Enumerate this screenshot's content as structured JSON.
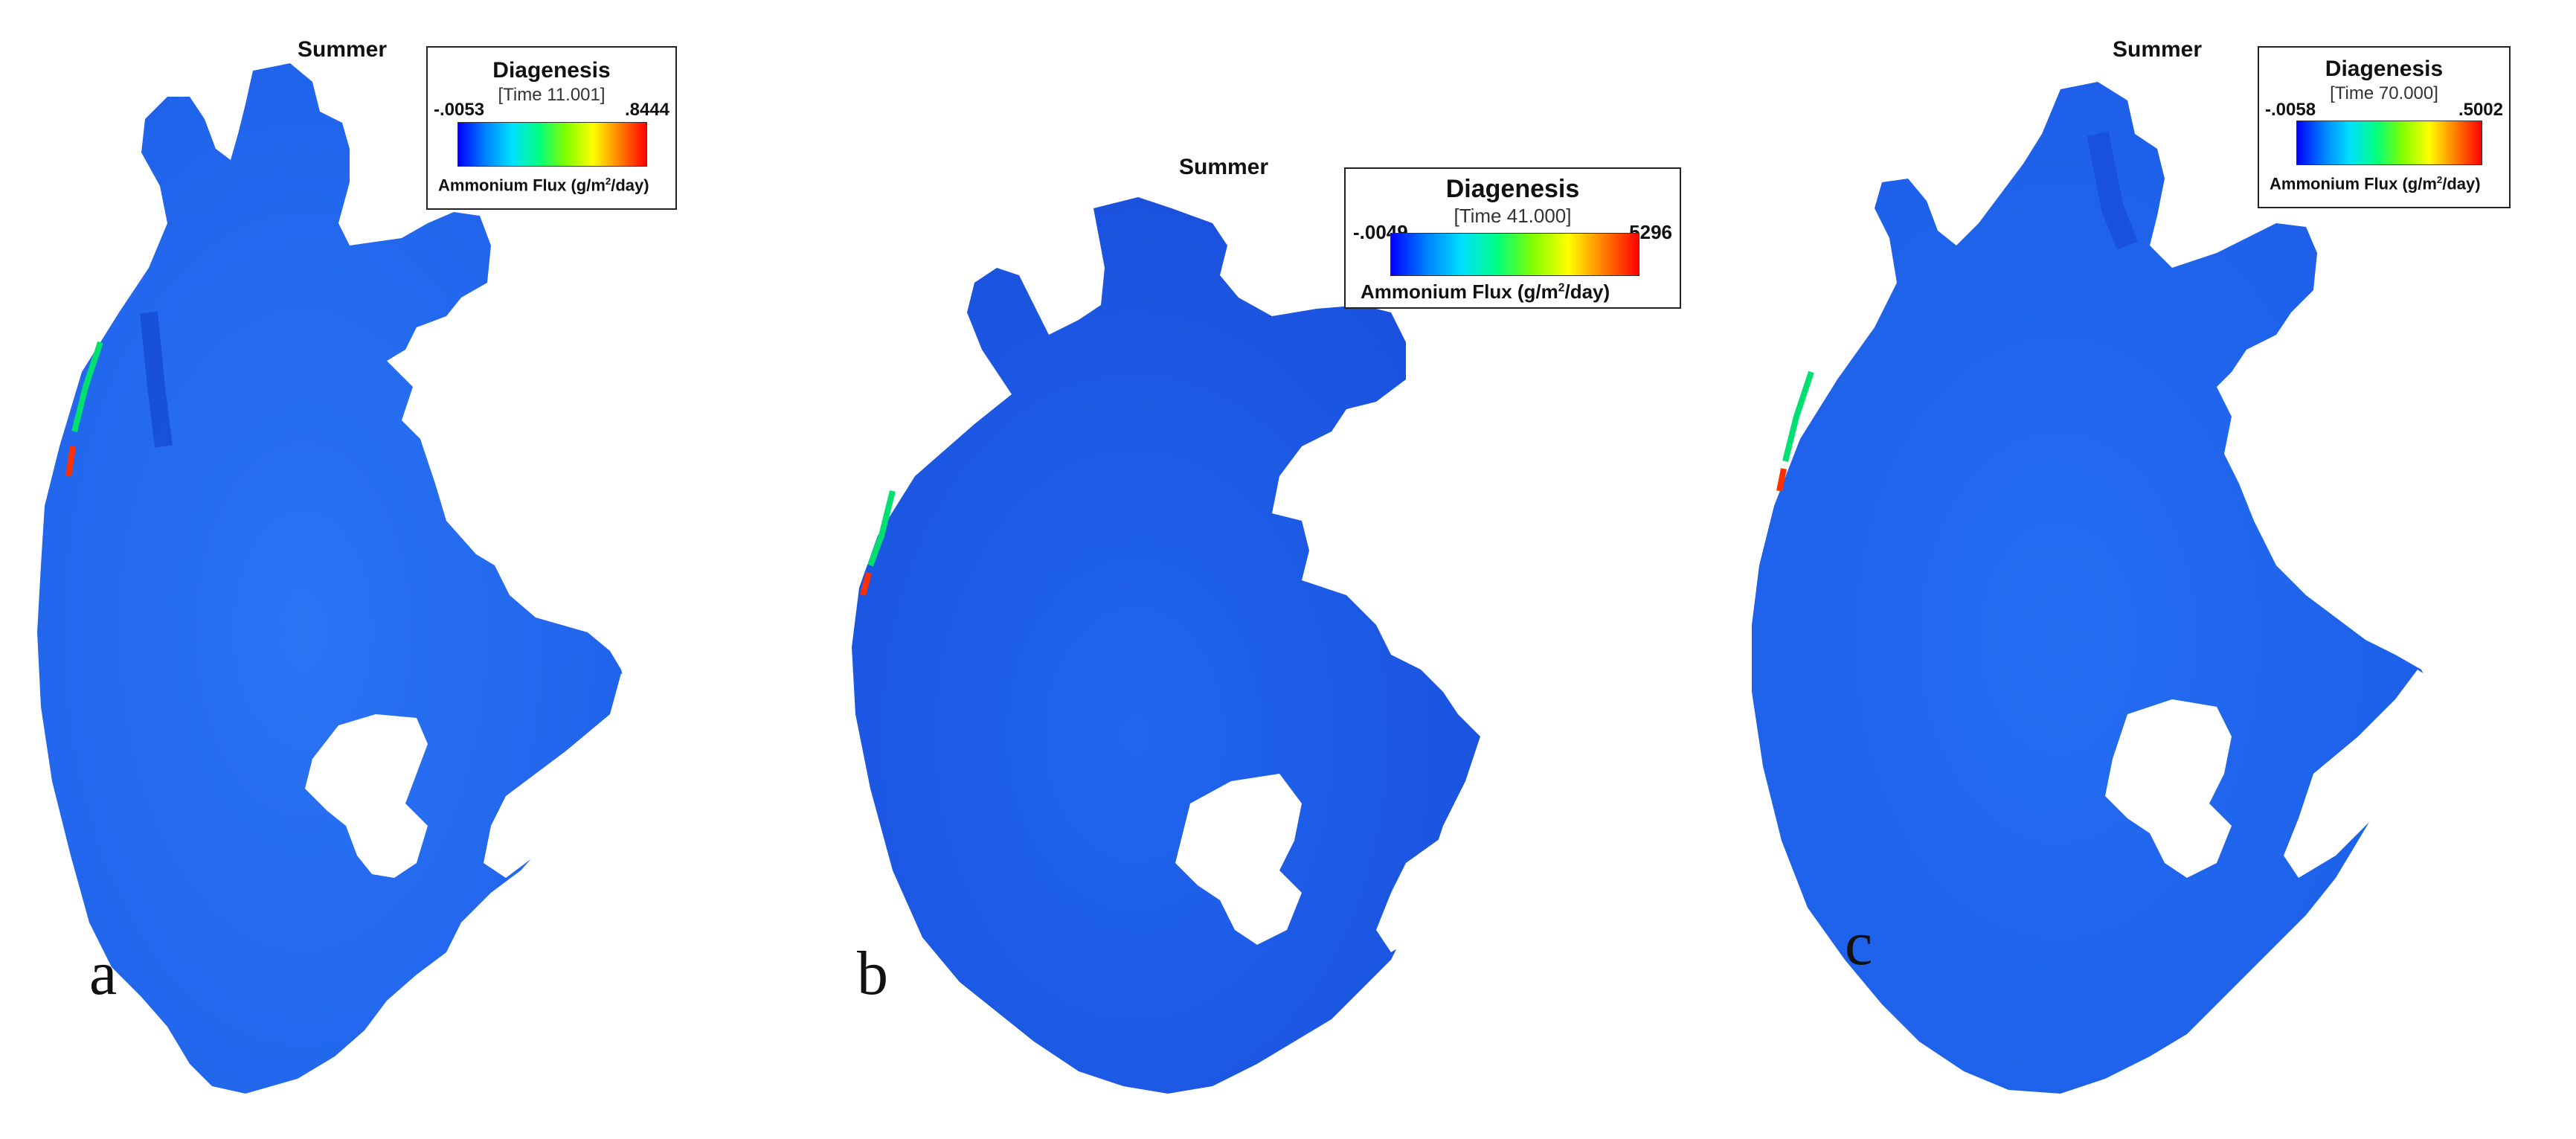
{
  "panels": [
    {
      "id": "a",
      "season": "Summer",
      "legend": {
        "title": "Diagenesis",
        "time": "[Time 11.001]",
        "min": "-.0053",
        "max": ".8444",
        "unit_prefix": "Ammonium Flux (g/m",
        "unit_sup": "2",
        "unit_suffix": "/day)"
      },
      "label": "a"
    },
    {
      "id": "b",
      "season": "Summer",
      "legend": {
        "title": "Diagenesis",
        "time": "[Time 41.000]",
        "min": "-.0049",
        "max": ".5296",
        "unit_prefix": "Ammonium Flux (g/m",
        "unit_sup": "2",
        "unit_suffix": "/day)"
      },
      "label": "b"
    },
    {
      "id": "c",
      "season": "Summer",
      "legend": {
        "title": "Diagenesis",
        "time": "[Time 70.000]",
        "min": "-.0058",
        "max": ".5002",
        "unit_prefix": "Ammonium Flux (g/m",
        "unit_sup": "2",
        "unit_suffix": "/day)"
      },
      "label": "c"
    }
  ],
  "colors": {
    "lake_fill": "#1f68f0",
    "lake_dark": "#1546d2",
    "colorbar": [
      "#0000ff",
      "#0080ff",
      "#00e0ff",
      "#00ff80",
      "#80ff00",
      "#ffff00",
      "#ff8000",
      "#ff0000"
    ]
  }
}
